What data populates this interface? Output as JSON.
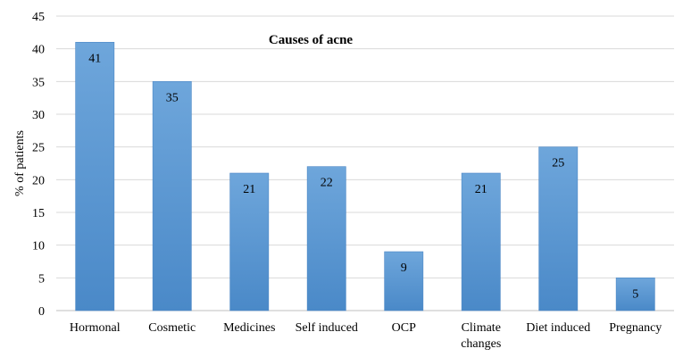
{
  "chart_data": {
    "type": "bar",
    "title": "Causes of acne",
    "xlabel": "",
    "ylabel": "% of patients",
    "ylim": [
      0,
      45
    ],
    "yticks": [
      0,
      5,
      10,
      15,
      20,
      25,
      30,
      35,
      40,
      45
    ],
    "grid": true,
    "legend": "none",
    "bar_color": "#5b9bd5",
    "categories": [
      [
        "Hormonal"
      ],
      [
        "Cosmetic"
      ],
      [
        "Medicines"
      ],
      [
        "Self induced"
      ],
      [
        "OCP"
      ],
      [
        "Climate",
        "changes"
      ],
      [
        "Diet induced"
      ],
      [
        "Pregnancy"
      ]
    ],
    "values": [
      41,
      35,
      21,
      22,
      9,
      21,
      25,
      5
    ]
  }
}
